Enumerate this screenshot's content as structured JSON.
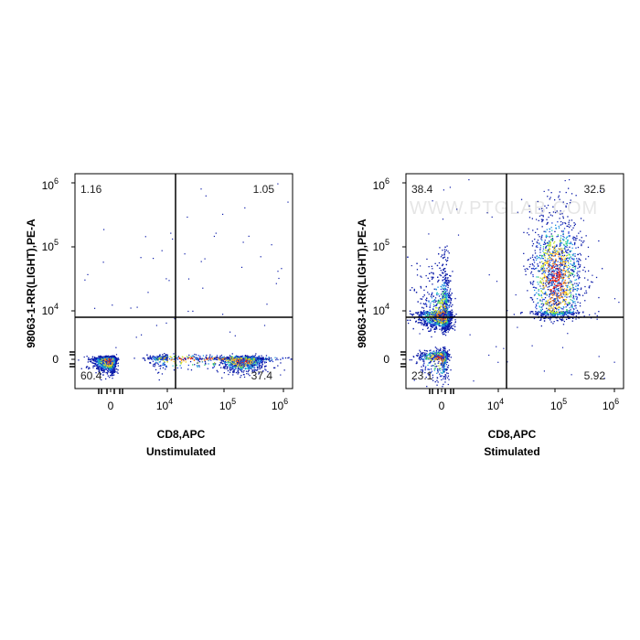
{
  "chart_data": [
    {
      "type": "scatter",
      "subtitle": "Unstimulated",
      "xlabel": "CD8,APC",
      "ylabel": "98063-1-RR(LIGHT),PE-A",
      "x_ticks": [
        "0",
        "10",
        "10",
        "10"
      ],
      "x_tick_exponents": [
        "",
        "4",
        "5",
        "6"
      ],
      "y_ticks": [
        "0",
        "10",
        "10",
        "10"
      ],
      "y_tick_exponents": [
        "",
        "4",
        "5",
        "6"
      ],
      "quadrant_percentages": {
        "upper_left": "1.16",
        "upper_right": "1.05",
        "lower_left": "60.4",
        "lower_right": "37.4"
      },
      "populations": [
        {
          "cx": 0,
          "cy": 0,
          "sx": 0.15,
          "sy": 0.12,
          "n": 1800
        },
        {
          "cx": 5.3,
          "cy": 0,
          "sx": 0.18,
          "sy": 0.12,
          "n": 1100
        },
        {
          "cx": 4.4,
          "cy": 0.1,
          "sx": 0.9,
          "sy": 0.15,
          "n": 500
        }
      ],
      "gate": {
        "x": 4.15,
        "y": 3.85
      }
    },
    {
      "type": "scatter",
      "subtitle": "Stimulated",
      "xlabel": "CD8,APC",
      "ylabel": "98063-1-RR(LIGHT),PE-A",
      "x_ticks": [
        "0",
        "10",
        "10",
        "10"
      ],
      "x_tick_exponents": [
        "",
        "4",
        "5",
        "6"
      ],
      "y_ticks": [
        "0",
        "10",
        "10",
        "10"
      ],
      "y_tick_exponents": [
        "",
        "4",
        "5",
        "6"
      ],
      "quadrant_percentages": {
        "upper_left": "38.4",
        "upper_right": "32.5",
        "lower_left": "23.1",
        "lower_right": "5.92"
      },
      "populations": [
        {
          "cx": 0.1,
          "cy": 3.6,
          "sx": 0.25,
          "sy": 0.5,
          "n": 2600
        },
        {
          "cx": 5.0,
          "cy": 4.5,
          "sx": 0.22,
          "sy": 0.5,
          "n": 1600
        },
        {
          "cx": 0,
          "cy": 0.2,
          "sx": 0.2,
          "sy": 0.3,
          "n": 700
        }
      ],
      "gate": {
        "x": 4.15,
        "y": 3.85
      }
    }
  ],
  "watermark": "WWW.PTGLAB.COM",
  "colors": {
    "axis": "#000000",
    "gate": "#000000",
    "density_low": "#0a1aa8",
    "density_high": "#ff1a00"
  }
}
